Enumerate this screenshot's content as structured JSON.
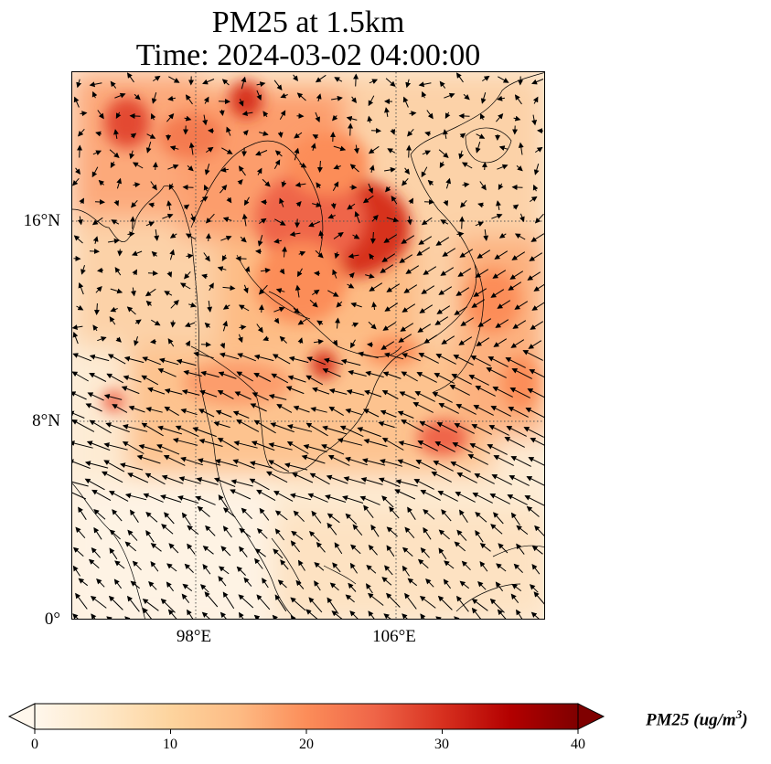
{
  "title": {
    "line1": "PM25 at 1.5km",
    "line2": "Time: 2024-03-02 04:00:00"
  },
  "map": {
    "variable": "PM25",
    "level": "1.5km",
    "lat_ticks": [
      "16°N",
      "8°N",
      "0°"
    ],
    "lon_ticks": [
      "98°E",
      "106°E"
    ],
    "gridlines": "dotted"
  },
  "colorbar": {
    "label": "PM25 (ug/m",
    "label_sup": "3",
    "label_close": ")",
    "ticks": [
      "0",
      "10",
      "20",
      "30",
      "40"
    ],
    "min": 0,
    "max": 40,
    "colormap": "OrRd",
    "extend": "both",
    "colors": [
      "#fff7ec",
      "#fee8c8",
      "#fdd49e",
      "#fdbb84",
      "#fc8d59",
      "#ef6548",
      "#d7301f",
      "#b30000",
      "#7f0000"
    ]
  }
}
